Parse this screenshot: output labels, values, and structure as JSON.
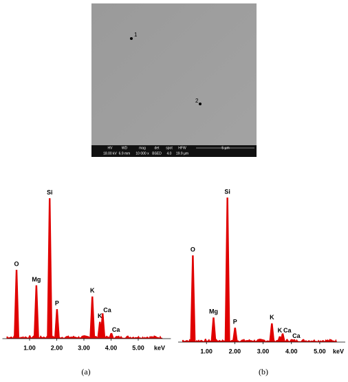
{
  "sem_image": {
    "points": [
      "1",
      "2"
    ],
    "info_bar": {
      "headers": [
        "HV",
        "WD",
        "mag",
        "det",
        "spot",
        "HFW"
      ],
      "values": [
        "18.00 kV",
        "6.9 mm",
        "10 000 x",
        "BSED",
        "4.0",
        "19.9 µm"
      ]
    },
    "scale_bar": "5 µm"
  },
  "chart_data": [
    {
      "type": "spectrum",
      "caption": "(a)",
      "color": "#e00000",
      "x_unit_label": "keV",
      "peak_labels": [
        "O",
        "Mg",
        "Si",
        "P",
        "K",
        "K",
        "Ca",
        "Ca"
      ],
      "x": [
        0.52,
        1.25,
        1.74,
        2.01,
        3.31,
        3.59,
        3.69,
        4.01
      ],
      "values": [
        49,
        38,
        100,
        21,
        30,
        12,
        18,
        4
      ],
      "xlim": [
        0,
        6.2
      ],
      "ylim": [
        0,
        100
      ],
      "xticks": [
        {
          "value": 1,
          "label": "1.00"
        },
        {
          "value": 2,
          "label": "2.00"
        },
        {
          "value": 3,
          "label": "3.00"
        },
        {
          "value": 4,
          "label": "4.00"
        },
        {
          "value": 5,
          "label": "5.00"
        }
      ]
    },
    {
      "type": "spectrum",
      "caption": "(b)",
      "color": "#e00000",
      "x_unit_label": "keV",
      "peak_labels": [
        "O",
        "Mg",
        "Si",
        "P",
        "K",
        "K",
        "Ca",
        "Ca"
      ],
      "x": [
        0.52,
        1.25,
        1.74,
        2.01,
        3.31,
        3.59,
        3.69,
        4.01
      ],
      "values": [
        60,
        17,
        100,
        10,
        13,
        4,
        6,
        2
      ],
      "xlim": [
        0,
        5.9
      ],
      "ylim": [
        0,
        100
      ],
      "xticks": [
        {
          "value": 1,
          "label": "1.00"
        },
        {
          "value": 2,
          "label": "2.00"
        },
        {
          "value": 3,
          "label": "3.00"
        },
        {
          "value": 4,
          "label": "4.00"
        },
        {
          "value": 5,
          "label": "5.00"
        }
      ]
    }
  ]
}
